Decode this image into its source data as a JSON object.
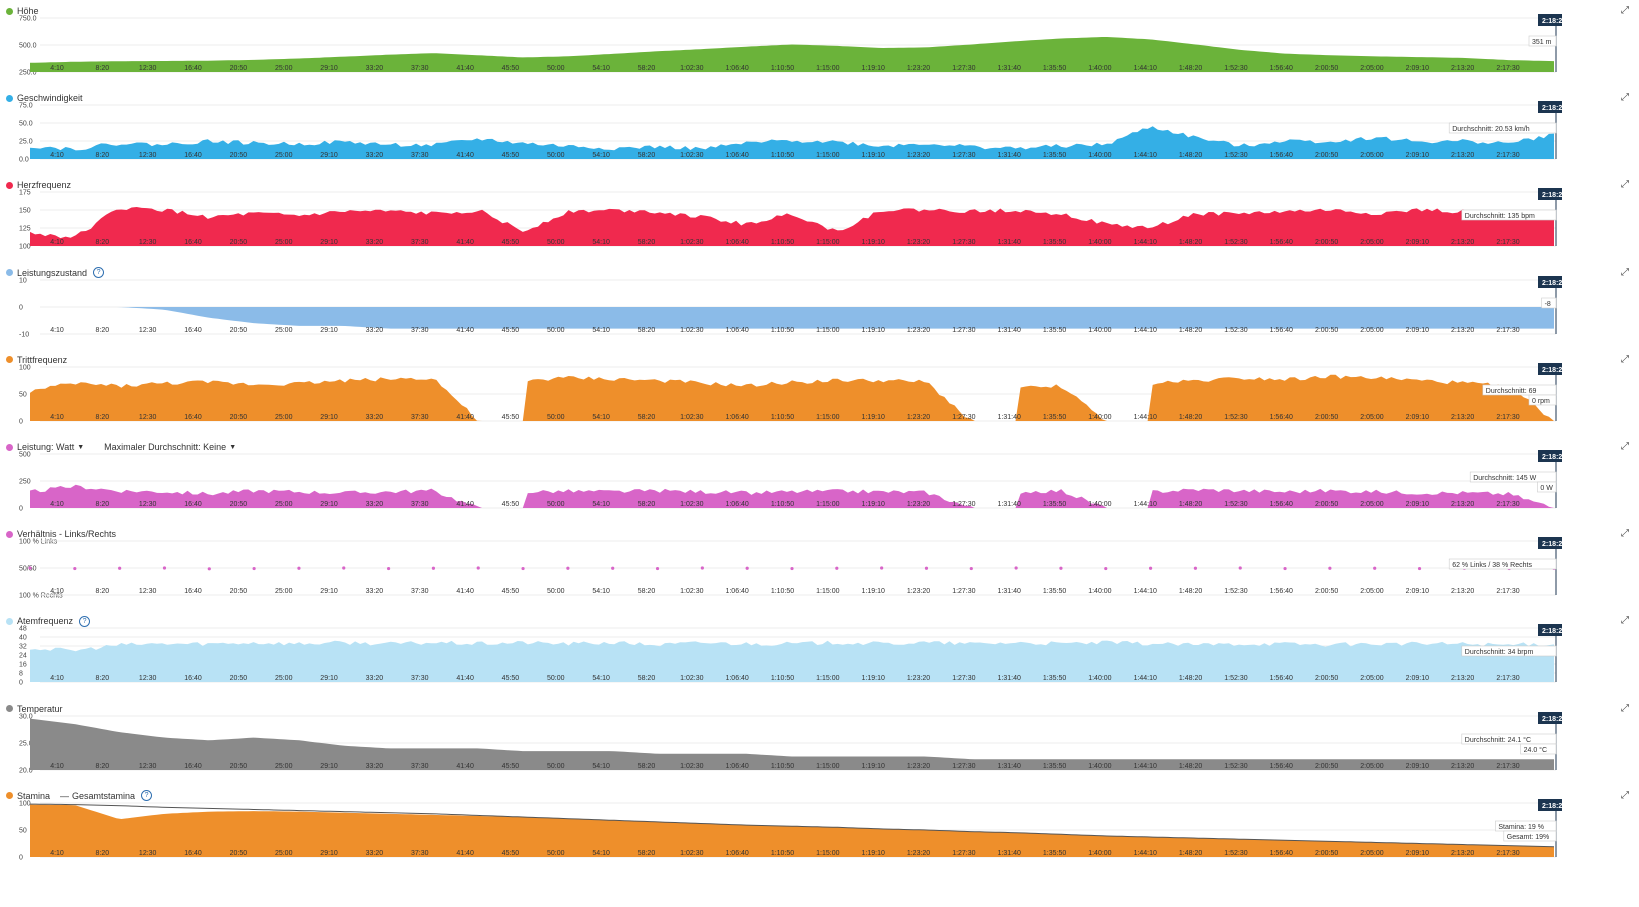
{
  "x_ticks": [
    "4:10",
    "8:20",
    "12:30",
    "16:40",
    "20:50",
    "25:00",
    "29:10",
    "33:20",
    "37:30",
    "41:40",
    "45:50",
    "50:00",
    "54:10",
    "58:20",
    "1:02:30",
    "1:06:40",
    "1:10:50",
    "1:15:00",
    "1:19:10",
    "1:23:20",
    "1:27:30",
    "1:31:40",
    "1:35:50",
    "1:40:00",
    "1:44:10",
    "1:48:20",
    "1:52:30",
    "1:56:40",
    "2:00:50",
    "2:05:00",
    "2:09:10",
    "2:13:20",
    "2:17:30"
  ],
  "cursor_time": "2:18:2",
  "icons": {
    "expand": "expand-icon",
    "help": "help-icon"
  },
  "panels": [
    {
      "id": "hoehe",
      "title": "Höhe",
      "color": "#6bb33a",
      "yticks": [
        "750.0",
        "500.0",
        "250.0"
      ],
      "help": false,
      "tooltip": [
        "351 m"
      ]
    },
    {
      "id": "geschwindigkeit",
      "title": "Geschwindigkeit",
      "color": "#34afe6",
      "yticks": [
        "75.0",
        "50.0",
        "25.0",
        "0.0"
      ],
      "help": false,
      "tooltip": [
        "Durchschnitt: 20.53 km/h"
      ]
    },
    {
      "id": "herzfrequenz",
      "title": "Herzfrequenz",
      "color": "#f0294e",
      "yticks": [
        "175",
        "150",
        "125",
        "100"
      ],
      "help": false,
      "tooltip": [
        "Durchschnitt: 135 bpm"
      ]
    },
    {
      "id": "leistungszustand",
      "title": "Leistungszustand",
      "color": "#8bbbe8",
      "yticks": [
        "10",
        "0",
        "-10"
      ],
      "help": true,
      "tooltip": [
        "-8"
      ]
    },
    {
      "id": "trittfrequenz",
      "title": "Trittfrequenz",
      "color": "#ee8f2b",
      "yticks": [
        "100",
        "50",
        "0"
      ],
      "help": false,
      "tooltip": [
        "Durchschnitt: 69",
        "0 rpm"
      ]
    },
    {
      "id": "leistung",
      "title": "Leistung: Watt",
      "title2": "Maximaler Durchschnitt: Keine",
      "color": "#d865c8",
      "yticks": [
        "500",
        "250",
        "0"
      ],
      "help": false,
      "tooltip": [
        "Durchschnitt: 145 W",
        "0 W"
      ]
    },
    {
      "id": "verhaeltnis",
      "title": "Verhältnis - Links/Rechts",
      "color": "#d865c8",
      "yticks": [
        "100 % Links",
        "50/50",
        "100 % Rechts"
      ],
      "help": false,
      "tooltip": [
        "62 % Links / 38 % Rechts"
      ]
    },
    {
      "id": "atemfrequenz",
      "title": "Atemfrequenz",
      "color": "#b8e2f5",
      "yticks": [
        "48",
        "40",
        "32",
        "24",
        "16",
        "8",
        "0"
      ],
      "help": true,
      "tooltip": [
        "Durchschnitt: 34 brpm"
      ]
    },
    {
      "id": "temperatur",
      "title": "Temperatur",
      "color": "#8a8a8a",
      "yticks": [
        "30.0",
        "25.0",
        "20.0"
      ],
      "help": false,
      "tooltip": [
        "Durchschnitt: 24.1 °C",
        "24.0 °C"
      ]
    },
    {
      "id": "stamina",
      "title": "Stamina",
      "title2": "Gesamtstamina",
      "color": "#ee8f2b",
      "yticks": [
        "100",
        "50",
        "0"
      ],
      "help": true,
      "tooltip": [
        "Stamina: 19 %",
        "Gesamt: 19%"
      ]
    }
  ],
  "chart_data": [
    {
      "type": "area",
      "name": "Höhe",
      "ylim": [
        250,
        750
      ],
      "x": "time",
      "series": [
        {
          "name": "Höhe",
          "values": [
            335,
            345,
            350,
            352,
            355,
            362,
            375,
            392,
            410,
            425,
            405,
            385,
            395,
            418,
            442,
            462,
            485,
            505,
            492,
            472,
            478,
            505,
            535,
            560,
            575,
            552,
            505,
            455,
            420,
            405,
            395,
            388,
            380,
            360,
            351
          ]
        }
      ]
    },
    {
      "type": "area",
      "name": "Geschwindigkeit",
      "ylim": [
        0,
        75
      ],
      "x": "time",
      "series": [
        {
          "name": "Geschwindigkeit",
          "values": [
            18,
            14,
            22,
            20,
            25,
            22,
            21,
            24,
            20,
            19,
            28,
            22,
            18,
            15,
            17,
            14,
            22,
            26,
            24,
            18,
            22,
            17,
            15,
            18,
            20,
            45,
            30,
            18,
            26,
            24,
            30,
            24,
            25,
            22,
            34
          ]
        }
      ]
    },
    {
      "type": "area",
      "name": "Herzfrequenz",
      "ylim": [
        100,
        175
      ],
      "x": "time",
      "series": [
        {
          "name": "Herzfrequenz",
          "values": [
            118,
            112,
            153,
            150,
            140,
            145,
            142,
            148,
            148,
            145,
            150,
            120,
            148,
            150,
            148,
            140,
            130,
            145,
            120,
            150,
            150,
            148,
            150,
            145,
            130,
            125,
            145,
            145,
            148,
            150,
            145,
            150,
            148,
            140,
            145
          ]
        }
      ]
    },
    {
      "type": "area",
      "name": "Leistungszustand",
      "ylim": [
        -10,
        10
      ],
      "x": "time",
      "series": [
        {
          "name": "Leistungszustand",
          "values": [
            0,
            0,
            0,
            -1,
            -4,
            -6,
            -7,
            -7,
            -8,
            -8,
            -8,
            -8,
            -8,
            -8,
            -8,
            -8,
            -8,
            -8,
            -8,
            -8,
            -8,
            -8,
            -8,
            -8,
            -8,
            -8,
            -8,
            -8,
            -8,
            -8,
            -8,
            -8,
            -8,
            -8,
            -8
          ]
        }
      ]
    },
    {
      "type": "area",
      "name": "Trittfrequenz",
      "ylim": [
        0,
        100
      ],
      "x": "time",
      "series": [
        {
          "name": "Trittfrequenz",
          "values": [
            55,
            70,
            65,
            70,
            72,
            68,
            70,
            75,
            78,
            80,
            0,
            75,
            80,
            78,
            75,
            70,
            65,
            72,
            75,
            75,
            72,
            0,
            60,
            65,
            0,
            70,
            75,
            80,
            78,
            82,
            80,
            75,
            70,
            65,
            0
          ]
        }
      ]
    },
    {
      "type": "area",
      "name": "Leistung",
      "ylim": [
        0,
        500
      ],
      "x": "time",
      "series": [
        {
          "name": "Leistung",
          "values": [
            150,
            200,
            160,
            150,
            130,
            160,
            150,
            140,
            150,
            160,
            0,
            150,
            155,
            150,
            160,
            150,
            140,
            150,
            155,
            150,
            145,
            0,
            150,
            160,
            0,
            150,
            170,
            160,
            150,
            160,
            150,
            140,
            140,
            130,
            0
          ]
        }
      ]
    },
    {
      "type": "scatter",
      "name": "Verhältnis - Links/Rechts",
      "ylim": [
        -100,
        100
      ],
      "x": "time",
      "series": [
        {
          "name": "Verhältnis",
          "values": [
            0,
            -2,
            -1,
            0,
            -3,
            -2,
            -1,
            0,
            -2,
            -1,
            0,
            -2,
            -1,
            -1,
            -2,
            0,
            -1,
            -2,
            -1,
            0,
            -1,
            -2,
            0,
            -1,
            -2,
            -1,
            -1,
            0,
            -2,
            -1,
            -1,
            -2,
            -1,
            -2,
            -1
          ]
        }
      ]
    },
    {
      "type": "area",
      "name": "Atemfrequenz",
      "ylim": [
        0,
        48
      ],
      "x": "time",
      "series": [
        {
          "name": "Atemfrequenz",
          "values": [
            30,
            28,
            33,
            34,
            34,
            35,
            34,
            35,
            34,
            35,
            34,
            35,
            34,
            35,
            33,
            35,
            34,
            34,
            35,
            34,
            35,
            34,
            35,
            34,
            35,
            34,
            33,
            34,
            34,
            33,
            34,
            34,
            34,
            33,
            34
          ]
        }
      ]
    },
    {
      "type": "area",
      "name": "Temperatur",
      "ylim": [
        20,
        30
      ],
      "x": "time",
      "series": [
        {
          "name": "Temperatur",
          "values": [
            29.5,
            28.5,
            27,
            26,
            25.5,
            26,
            25.5,
            24.5,
            24,
            24,
            24,
            23.5,
            23.5,
            23.5,
            23,
            23,
            23,
            22.5,
            22.5,
            22.5,
            22.5,
            22,
            22,
            22,
            22,
            22,
            22,
            22,
            22,
            22,
            22,
            22,
            22,
            22,
            22
          ]
        }
      ]
    },
    {
      "type": "area",
      "name": "Stamina",
      "ylim": [
        0,
        100
      ],
      "x": "time",
      "series": [
        {
          "name": "Stamina",
          "values": [
            97,
            96,
            70,
            80,
            84,
            85,
            84,
            82,
            80,
            78,
            76,
            74,
            71,
            68,
            65,
            62,
            59,
            57,
            55,
            52,
            50,
            47,
            45,
            42,
            39,
            37,
            35,
            33,
            31,
            29,
            27,
            25,
            23,
            21,
            19
          ]
        },
        {
          "name": "Gesamtstamina",
          "values": [
            98,
            97,
            95,
            92,
            90,
            88,
            86,
            84,
            82,
            80,
            77,
            74,
            71,
            68,
            65,
            62,
            59,
            57,
            55,
            52,
            50,
            47,
            45,
            42,
            39,
            37,
            35,
            33,
            31,
            29,
            27,
            25,
            23,
            21,
            19
          ]
        }
      ]
    }
  ]
}
